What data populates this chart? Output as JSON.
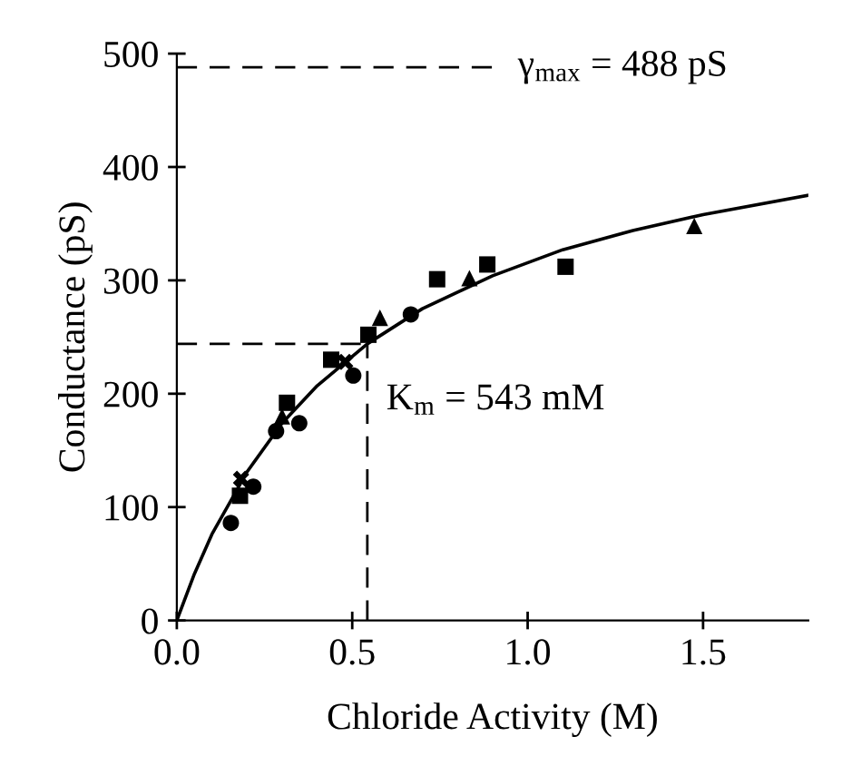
{
  "chart_data": {
    "type": "scatter",
    "xlabel": "Chloride Activity (M)",
    "ylabel": "Conductance (pS)",
    "xlim": [
      0,
      1.8
    ],
    "ylim": [
      0,
      500
    ],
    "xticks": [
      {
        "value": 0,
        "label": "0.0"
      },
      0.5,
      {
        "value": 1,
        "label": "1.0"
      },
      1.5
    ],
    "yticks": [
      0,
      100,
      200,
      300,
      400,
      500
    ],
    "grid": false,
    "legend": false,
    "series": [
      {
        "marker": "circle",
        "color": "#000000",
        "x": [
          0.154,
          0.218,
          0.283,
          0.349,
          0.503,
          0.667
        ],
        "values": [
          86,
          118,
          167,
          174,
          216,
          270
        ]
      },
      {
        "marker": "square",
        "color": "#000000",
        "x": [
          0.18,
          0.314,
          0.44,
          0.546,
          0.742,
          0.885,
          1.108
        ],
        "values": [
          110,
          192,
          230,
          252,
          301,
          314,
          312
        ]
      },
      {
        "marker": "triangle",
        "color": "#000000",
        "x": [
          0.3,
          0.579,
          0.834,
          1.475
        ],
        "values": [
          180,
          267,
          302,
          348
        ]
      },
      {
        "marker": "cross",
        "color": "#000000",
        "x": [
          0.183,
          0.48
        ],
        "values": [
          125,
          228
        ]
      },
      {
        "type": "line",
        "marker": "none",
        "line_style": "solid",
        "color": "#000000",
        "x": [
          0,
          0.05,
          0.1,
          0.2,
          0.3,
          0.4,
          0.543,
          0.7,
          0.9,
          1.1,
          1.3,
          1.5,
          1.8
        ],
        "values": [
          0,
          41,
          76,
          131,
          174,
          207,
          244,
          275,
          304,
          327,
          344,
          358,
          375
        ]
      }
    ],
    "ref_lines": [
      {
        "axis": "y",
        "value": 488,
        "label": "γ$_{max}$ = 488 pS",
        "line_style": "dashed",
        "color": "#000000"
      },
      {
        "axis": "y",
        "value": 244,
        "line_style": "dashed",
        "color": "#000000"
      },
      {
        "axis": "x",
        "value": 0.543,
        "label": "K$_{m}$ = 543 mM",
        "line_style": "dashed",
        "color": "#000000"
      }
    ]
  }
}
